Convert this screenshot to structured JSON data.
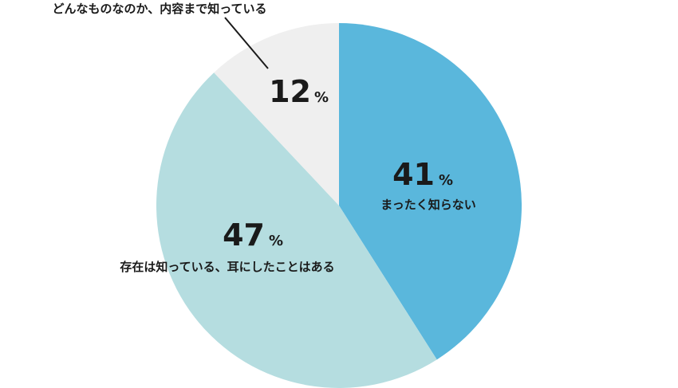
{
  "chart_data": {
    "type": "pie",
    "title": "",
    "slices": [
      {
        "label": "まったく知らない",
        "value": 41,
        "color": "#5ab7dc"
      },
      {
        "label": "存在は知っている、耳にしたことはある",
        "value": 47,
        "color": "#b5dde0"
      },
      {
        "label": "どんなものなのか、内容まで知っている",
        "value": 12,
        "color": "#efefef"
      }
    ],
    "percent_sign": "%",
    "start": "12 o'clock",
    "direction": "clockwise"
  }
}
